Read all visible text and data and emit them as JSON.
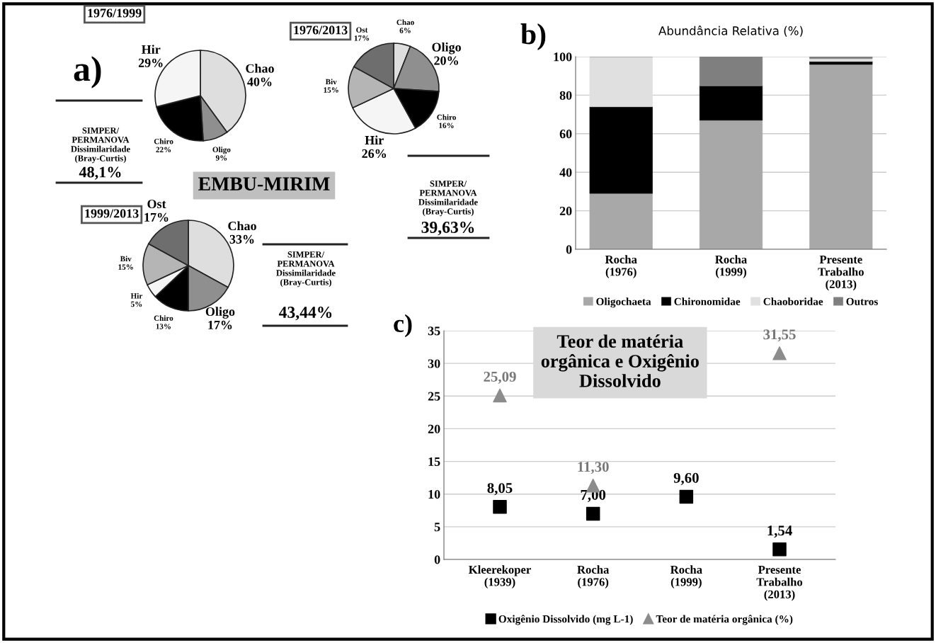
{
  "chart_data": [
    {
      "type": "pie",
      "title": "1976/1999",
      "categories": [
        "Chao",
        "Oligo",
        "Chiro",
        "Hir"
      ],
      "values": [
        40,
        9,
        22,
        29
      ],
      "value_labels": [
        "40%",
        "9%",
        "22%",
        "29%"
      ],
      "colors": [
        "#dedede",
        "#8f8f8f",
        "#000000",
        "#f5f5f5"
      ],
      "annotations": [
        "a)",
        "SIMPER/\nPERMANOVA\nDissimilaridade\n(Bray-Curtis)",
        "48,1%",
        "EMBU-MIRIM"
      ]
    },
    {
      "type": "pie",
      "title": "1976/2013",
      "categories": [
        "Chao",
        "Oligo",
        "Chiro",
        "Hir",
        "Biv",
        "Ost"
      ],
      "values": [
        6,
        20,
        16,
        26,
        15,
        17
      ],
      "value_labels": [
        "6%",
        "20%",
        "16%",
        "26%",
        "15%",
        "17%"
      ],
      "colors": [
        "#dedede",
        "#8f8f8f",
        "#000000",
        "#f5f5f5",
        "#b5b5b5",
        "#6e6e6e"
      ],
      "annotations": [
        "SIMPER/\nPERMANOVA\nDissimilaridade\n(Bray-Curtis)",
        "39,63%"
      ]
    },
    {
      "type": "pie",
      "title": "1999/2013",
      "categories": [
        "Chao",
        "Oligo",
        "Chiro",
        "Hir",
        "Biv",
        "Ost"
      ],
      "values": [
        33,
        17,
        13,
        5,
        15,
        17
      ],
      "value_labels": [
        "33%",
        "17%",
        "13%",
        "5%",
        "15%",
        "17%"
      ],
      "colors": [
        "#dedede",
        "#8f8f8f",
        "#000000",
        "#f5f5f5",
        "#b5b5b5",
        "#6e6e6e"
      ],
      "annotations": [
        "SIMPER/\nPERMANOVA\nDissimilaridade\n(Bray-Curtis)",
        "43,44%"
      ]
    },
    {
      "type": "bar",
      "title": "Abundância Relativa (%)",
      "stacked": true,
      "categories": [
        "Rocha\n(1976)",
        "Rocha\n(1999)",
        "Presente\nTrabalho\n(2013)"
      ],
      "series": [
        {
          "name": "Oligochaeta",
          "color": "#a8a8a8",
          "values": [
            29,
            67,
            96
          ]
        },
        {
          "name": "Chironomidae",
          "color": "#000000",
          "values": [
            45,
            18,
            1.5
          ]
        },
        {
          "name": "Chaoboridae",
          "color": "#e0e0e0",
          "values": [
            26,
            0,
            1.5
          ]
        },
        {
          "name": "Outros",
          "color": "#7f7f7f",
          "values": [
            0,
            15,
            1
          ]
        }
      ],
      "ylim": [
        0,
        100
      ],
      "yticks": [
        0,
        20,
        40,
        60,
        80,
        100
      ],
      "grid": "y",
      "legend": "bottom",
      "annotations": [
        "b)"
      ]
    },
    {
      "type": "scatter",
      "title": "Teor de matéria\norgânica e Oxigênio\nDissolvido",
      "categories": [
        "Kleerekoper\n(1939)",
        "Rocha\n(1976)",
        "Rocha\n(1999)",
        "Presente\nTrabalho\n(2013)"
      ],
      "series": [
        {
          "name": "Oxigênio Dissolvido (mg L-1)",
          "color": "#000000",
          "marker": "square",
          "values": [
            8.05,
            7.0,
            9.6,
            1.54
          ],
          "value_labels": [
            "8,05",
            "7,00",
            "9,60",
            "1,54"
          ]
        },
        {
          "name": "Teor de matéria orgânica (%)",
          "color": "#8c8c8c",
          "marker": "triangle",
          "values": [
            25.09,
            11.3,
            null,
            31.55
          ],
          "value_labels": [
            "25,09",
            "11,30",
            null,
            "31,55"
          ]
        }
      ],
      "ylim": [
        0,
        35
      ],
      "yticks": [
        0,
        5,
        10,
        15,
        20,
        25,
        30,
        35
      ],
      "grid": "y",
      "legend": "bottom",
      "annotations": [
        "c)"
      ]
    }
  ]
}
